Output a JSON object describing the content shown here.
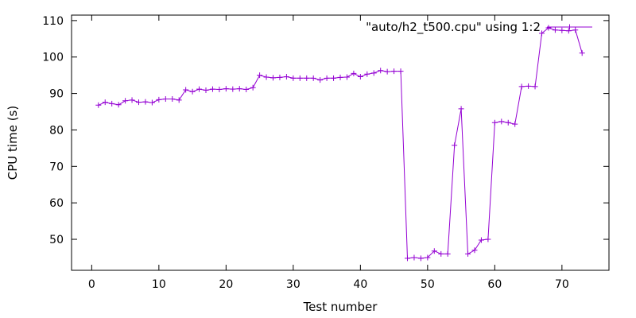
{
  "chart_data": {
    "type": "line",
    "title": "",
    "xlabel": "Test number",
    "ylabel": "CPU time (s)",
    "xlim": [
      -3,
      77
    ],
    "ylim": [
      41.5,
      111.5
    ],
    "xticks": [
      0,
      10,
      20,
      30,
      40,
      50,
      60,
      70
    ],
    "yticks": [
      50,
      60,
      70,
      80,
      90,
      100,
      110
    ],
    "grid": false,
    "legend_position": "top-right",
    "series": [
      {
        "name": "\"auto/h2_t500.cpu\" using 1:2",
        "color": "#9400d3",
        "marker": "plus",
        "x": [
          1,
          2,
          3,
          4,
          5,
          6,
          7,
          8,
          9,
          10,
          11,
          12,
          13,
          14,
          15,
          16,
          17,
          18,
          19,
          20,
          21,
          22,
          23,
          24,
          25,
          26,
          27,
          28,
          29,
          30,
          31,
          32,
          33,
          34,
          35,
          36,
          37,
          38,
          39,
          40,
          41,
          42,
          43,
          44,
          45,
          46,
          47,
          48,
          49,
          50,
          51,
          52,
          53,
          54,
          55,
          56,
          57,
          58,
          59,
          60,
          61,
          62,
          63,
          64,
          65,
          66,
          67,
          68,
          69,
          70,
          71,
          72,
          73
        ],
        "y": [
          86.8,
          87.6,
          87.2,
          86.9,
          88.0,
          88.2,
          87.6,
          87.7,
          87.5,
          88.3,
          88.5,
          88.5,
          88.2,
          91.0,
          90.5,
          91.2,
          90.9,
          91.2,
          91.1,
          91.3,
          91.2,
          91.3,
          91.1,
          91.6,
          95.0,
          94.5,
          94.3,
          94.4,
          94.6,
          94.2,
          94.2,
          94.2,
          94.2,
          93.7,
          94.2,
          94.2,
          94.4,
          94.5,
          95.5,
          94.6,
          95.3,
          95.6,
          96.3,
          96.0,
          96.1,
          96.1,
          44.8,
          45.0,
          44.8,
          45.0,
          46.8,
          46.0,
          46.0,
          75.8,
          85.8,
          46.0,
          47.0,
          49.8,
          50.0,
          82.0,
          82.3,
          82.0,
          81.6,
          91.9,
          92.0,
          91.9,
          106.5,
          108.0,
          107.4,
          107.3,
          107.2,
          107.4,
          101.1
        ]
      }
    ]
  }
}
